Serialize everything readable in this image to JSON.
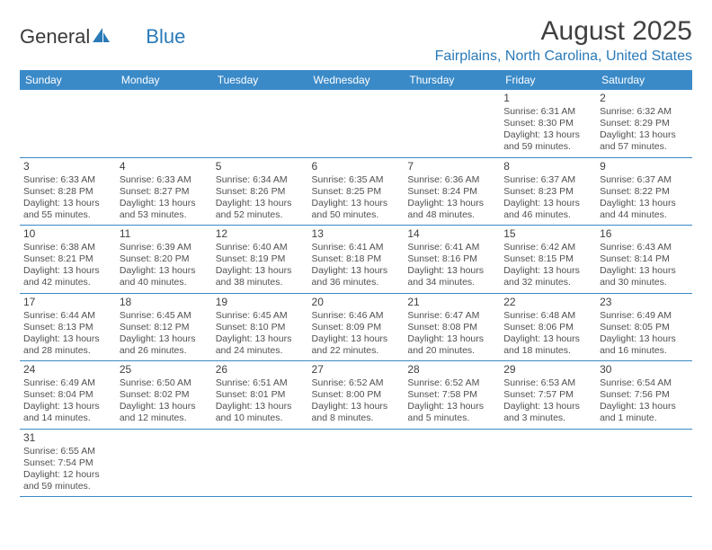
{
  "logo": {
    "text1": "General",
    "text2": "Blue"
  },
  "title": {
    "month": "August 2025",
    "location": "Fairplains, North Carolina, United States"
  },
  "colors": {
    "header_bg": "#3a8ac8",
    "header_text": "#ffffff",
    "accent": "#2a7ab8",
    "body_text": "#404040",
    "cell_text": "#505050",
    "border": "#3a8ac8",
    "page_bg": "#ffffff"
  },
  "day_headers": [
    "Sunday",
    "Monday",
    "Tuesday",
    "Wednesday",
    "Thursday",
    "Friday",
    "Saturday"
  ],
  "weeks": [
    [
      null,
      null,
      null,
      null,
      null,
      {
        "n": "1",
        "sr": "6:31 AM",
        "ss": "8:30 PM",
        "dl": "13 hours and 59 minutes."
      },
      {
        "n": "2",
        "sr": "6:32 AM",
        "ss": "8:29 PM",
        "dl": "13 hours and 57 minutes."
      }
    ],
    [
      {
        "n": "3",
        "sr": "6:33 AM",
        "ss": "8:28 PM",
        "dl": "13 hours and 55 minutes."
      },
      {
        "n": "4",
        "sr": "6:33 AM",
        "ss": "8:27 PM",
        "dl": "13 hours and 53 minutes."
      },
      {
        "n": "5",
        "sr": "6:34 AM",
        "ss": "8:26 PM",
        "dl": "13 hours and 52 minutes."
      },
      {
        "n": "6",
        "sr": "6:35 AM",
        "ss": "8:25 PM",
        "dl": "13 hours and 50 minutes."
      },
      {
        "n": "7",
        "sr": "6:36 AM",
        "ss": "8:24 PM",
        "dl": "13 hours and 48 minutes."
      },
      {
        "n": "8",
        "sr": "6:37 AM",
        "ss": "8:23 PM",
        "dl": "13 hours and 46 minutes."
      },
      {
        "n": "9",
        "sr": "6:37 AM",
        "ss": "8:22 PM",
        "dl": "13 hours and 44 minutes."
      }
    ],
    [
      {
        "n": "10",
        "sr": "6:38 AM",
        "ss": "8:21 PM",
        "dl": "13 hours and 42 minutes."
      },
      {
        "n": "11",
        "sr": "6:39 AM",
        "ss": "8:20 PM",
        "dl": "13 hours and 40 minutes."
      },
      {
        "n": "12",
        "sr": "6:40 AM",
        "ss": "8:19 PM",
        "dl": "13 hours and 38 minutes."
      },
      {
        "n": "13",
        "sr": "6:41 AM",
        "ss": "8:18 PM",
        "dl": "13 hours and 36 minutes."
      },
      {
        "n": "14",
        "sr": "6:41 AM",
        "ss": "8:16 PM",
        "dl": "13 hours and 34 minutes."
      },
      {
        "n": "15",
        "sr": "6:42 AM",
        "ss": "8:15 PM",
        "dl": "13 hours and 32 minutes."
      },
      {
        "n": "16",
        "sr": "6:43 AM",
        "ss": "8:14 PM",
        "dl": "13 hours and 30 minutes."
      }
    ],
    [
      {
        "n": "17",
        "sr": "6:44 AM",
        "ss": "8:13 PM",
        "dl": "13 hours and 28 minutes."
      },
      {
        "n": "18",
        "sr": "6:45 AM",
        "ss": "8:12 PM",
        "dl": "13 hours and 26 minutes."
      },
      {
        "n": "19",
        "sr": "6:45 AM",
        "ss": "8:10 PM",
        "dl": "13 hours and 24 minutes."
      },
      {
        "n": "20",
        "sr": "6:46 AM",
        "ss": "8:09 PM",
        "dl": "13 hours and 22 minutes."
      },
      {
        "n": "21",
        "sr": "6:47 AM",
        "ss": "8:08 PM",
        "dl": "13 hours and 20 minutes."
      },
      {
        "n": "22",
        "sr": "6:48 AM",
        "ss": "8:06 PM",
        "dl": "13 hours and 18 minutes."
      },
      {
        "n": "23",
        "sr": "6:49 AM",
        "ss": "8:05 PM",
        "dl": "13 hours and 16 minutes."
      }
    ],
    [
      {
        "n": "24",
        "sr": "6:49 AM",
        "ss": "8:04 PM",
        "dl": "13 hours and 14 minutes."
      },
      {
        "n": "25",
        "sr": "6:50 AM",
        "ss": "8:02 PM",
        "dl": "13 hours and 12 minutes."
      },
      {
        "n": "26",
        "sr": "6:51 AM",
        "ss": "8:01 PM",
        "dl": "13 hours and 10 minutes."
      },
      {
        "n": "27",
        "sr": "6:52 AM",
        "ss": "8:00 PM",
        "dl": "13 hours and 8 minutes."
      },
      {
        "n": "28",
        "sr": "6:52 AM",
        "ss": "7:58 PM",
        "dl": "13 hours and 5 minutes."
      },
      {
        "n": "29",
        "sr": "6:53 AM",
        "ss": "7:57 PM",
        "dl": "13 hours and 3 minutes."
      },
      {
        "n": "30",
        "sr": "6:54 AM",
        "ss": "7:56 PM",
        "dl": "13 hours and 1 minute."
      }
    ],
    [
      {
        "n": "31",
        "sr": "6:55 AM",
        "ss": "7:54 PM",
        "dl": "12 hours and 59 minutes."
      },
      null,
      null,
      null,
      null,
      null,
      null
    ]
  ],
  "labels": {
    "sunrise": "Sunrise: ",
    "sunset": "Sunset: ",
    "daylight": "Daylight: "
  }
}
